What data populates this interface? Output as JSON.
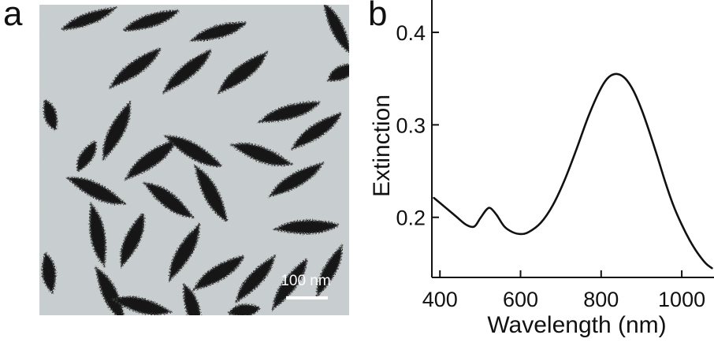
{
  "figure": {
    "panel_a_label": "a",
    "panel_b_label": "b",
    "scale_bar_label": "100 nm"
  },
  "colors": {
    "tem_background": "#c9cfd0",
    "particle": "#161616",
    "particle_edge": "#3a3a3a",
    "curve": "#111111"
  },
  "chart_data": {
    "type": "line",
    "title": "",
    "xlabel": "Wavelength (nm)",
    "ylabel": "Extinction",
    "xlim": [
      380,
      1080
    ],
    "ylim": [
      0.135,
      0.435
    ],
    "xticks": [
      400,
      600,
      800,
      1000
    ],
    "yticks": [
      0.2,
      0.3,
      0.4
    ],
    "xtick_labels": [
      "400",
      "600",
      "800",
      "1000"
    ],
    "ytick_labels": [
      "0.2",
      "0.3",
      "0.4"
    ],
    "grid": false,
    "legend": "none",
    "series": [
      {
        "x": [
          385,
          410,
          440,
          465,
          485,
          500,
          515,
          525,
          540,
          560,
          580,
          600,
          620,
          650,
          680,
          710,
          740,
          770,
          800,
          820,
          840,
          860,
          880,
          900,
          920,
          940,
          960,
          980,
          1000,
          1020,
          1040,
          1060,
          1075
        ],
        "y": [
          0.221,
          0.212,
          0.201,
          0.192,
          0.19,
          0.199,
          0.208,
          0.21,
          0.203,
          0.19,
          0.184,
          0.182,
          0.184,
          0.194,
          0.213,
          0.241,
          0.275,
          0.311,
          0.34,
          0.352,
          0.355,
          0.35,
          0.337,
          0.317,
          0.292,
          0.265,
          0.237,
          0.212,
          0.192,
          0.175,
          0.161,
          0.15,
          0.145
        ]
      }
    ]
  }
}
